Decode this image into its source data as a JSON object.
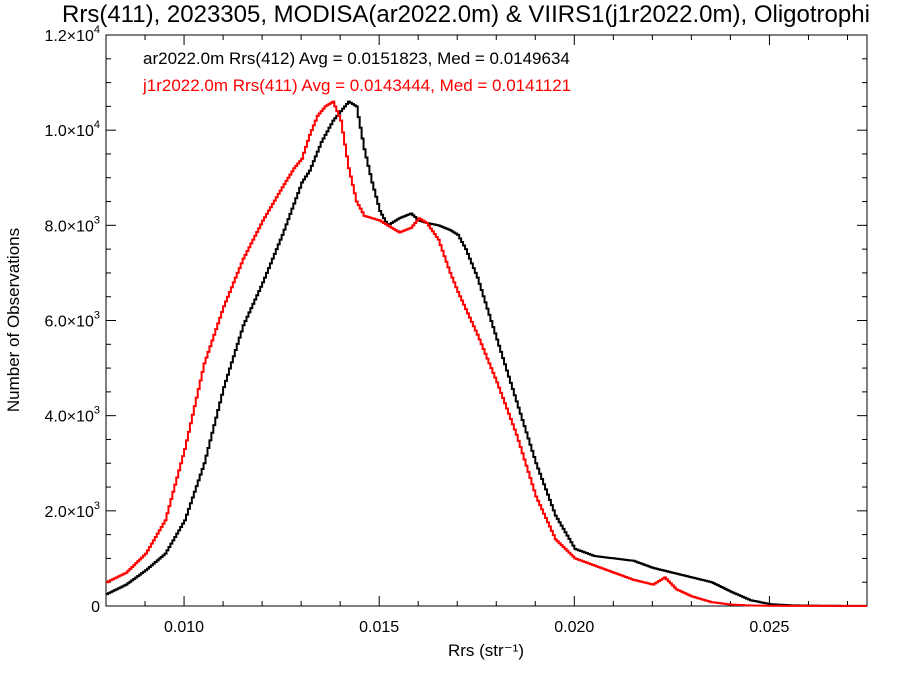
{
  "title": "Rrs(411), 2023305, MODISA(ar2022.0m) & VIIRS1(j1r2022.0m), Oligotrophi",
  "chart_data": {
    "type": "line",
    "title": "Rrs(411), 2023305, MODISA(ar2022.0m) & VIIRS1(j1r2022.0m), Oligotrophi",
    "xlabel": "Rrs (str⁻¹)",
    "ylabel": "Number of Observations",
    "xlim": [
      0.008,
      0.0275
    ],
    "ylim": [
      0,
      12000
    ],
    "grid": false,
    "legend_placement": "top-left",
    "x_ticks": [
      0.01,
      0.015,
      0.02,
      0.025
    ],
    "x_tick_labels": [
      "0.010",
      "0.015",
      "0.020",
      "0.025"
    ],
    "y_ticks": [
      0,
      2000,
      4000,
      6000,
      8000,
      10000,
      12000
    ],
    "y_tick_labels": [
      {
        "mantissa": "0",
        "exp": ""
      },
      {
        "mantissa": "2.0×10",
        "exp": "3"
      },
      {
        "mantissa": "4.0×10",
        "exp": "3"
      },
      {
        "mantissa": "6.0×10",
        "exp": "3"
      },
      {
        "mantissa": "8.0×10",
        "exp": "3"
      },
      {
        "mantissa": "1.0×10",
        "exp": "4"
      },
      {
        "mantissa": "1.2×10",
        "exp": "4"
      }
    ],
    "series": [
      {
        "name": "ar2022.0m Rrs(412) Avg = 0.0151823, Med = 0.0149634",
        "color": "#000000",
        "x": [
          0.008,
          0.0085,
          0.009,
          0.0095,
          0.01,
          0.0105,
          0.011,
          0.0115,
          0.012,
          0.0125,
          0.013,
          0.0132,
          0.0135,
          0.0138,
          0.014,
          0.0142,
          0.0144,
          0.0146,
          0.0148,
          0.015,
          0.0152,
          0.0155,
          0.0158,
          0.016,
          0.0162,
          0.0165,
          0.0168,
          0.017,
          0.0172,
          0.0175,
          0.018,
          0.0185,
          0.019,
          0.0195,
          0.02,
          0.0205,
          0.021,
          0.0215,
          0.022,
          0.0225,
          0.023,
          0.0235,
          0.024,
          0.0245,
          0.025,
          0.0255,
          0.026,
          0.0265,
          0.027,
          0.0275
        ],
        "y": [
          250,
          450,
          750,
          1100,
          1800,
          3000,
          4600,
          5900,
          6800,
          7800,
          8900,
          9150,
          9750,
          10200,
          10400,
          10600,
          10500,
          9600,
          8900,
          8300,
          8000,
          8150,
          8250,
          8100,
          8050,
          8000,
          7900,
          7800,
          7500,
          6900,
          5600,
          4300,
          3000,
          1900,
          1200,
          1050,
          1000,
          950,
          800,
          700,
          600,
          500,
          300,
          120,
          40,
          15,
          8,
          5,
          3,
          2
        ]
      },
      {
        "name": "j1r2022.0m Rrs(411) Avg = 0.0143444, Med = 0.0141121",
        "color": "#ff0000",
        "x": [
          0.008,
          0.0085,
          0.009,
          0.0095,
          0.01,
          0.0105,
          0.011,
          0.0115,
          0.012,
          0.0125,
          0.0128,
          0.013,
          0.0132,
          0.0134,
          0.0136,
          0.0138,
          0.014,
          0.0142,
          0.0144,
          0.0146,
          0.0148,
          0.015,
          0.0152,
          0.0155,
          0.0158,
          0.016,
          0.0162,
          0.0165,
          0.0168,
          0.017,
          0.0175,
          0.018,
          0.0185,
          0.019,
          0.0195,
          0.02,
          0.0205,
          0.021,
          0.0215,
          0.022,
          0.0223,
          0.0226,
          0.023,
          0.0235,
          0.024,
          0.0245,
          0.025,
          0.0255,
          0.026,
          0.027,
          0.0275
        ],
        "y": [
          500,
          700,
          1100,
          1800,
          3300,
          5100,
          6300,
          7300,
          8100,
          8800,
          9200,
          9400,
          9900,
          10300,
          10500,
          10600,
          10200,
          9200,
          8500,
          8200,
          8150,
          8100,
          8000,
          7850,
          7950,
          8150,
          8050,
          7700,
          7000,
          6600,
          5700,
          4700,
          3600,
          2300,
          1400,
          1000,
          850,
          700,
          550,
          450,
          600,
          350,
          200,
          80,
          30,
          10,
          5,
          3,
          2,
          1,
          1
        ]
      }
    ]
  }
}
